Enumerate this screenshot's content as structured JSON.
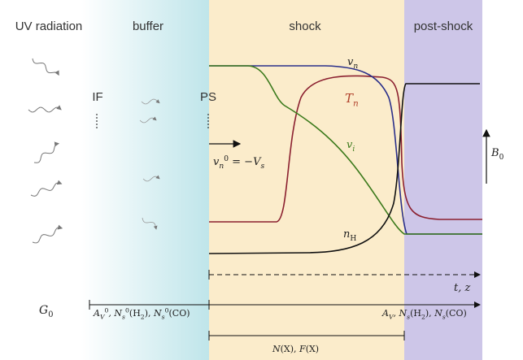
{
  "header": {
    "regions": [
      "UV radiation",
      "buffer",
      "shock",
      "post-shock"
    ]
  },
  "markers": {
    "ionization_front": "IF",
    "pre_shock": "PS"
  },
  "curves": {
    "v_n": [
      {
        "text": "v"
      },
      {
        "text": "n",
        "pos": "sub"
      }
    ],
    "T_n": [
      {
        "text": "T"
      },
      {
        "text": "n",
        "pos": "sub"
      }
    ],
    "v_i": [
      {
        "text": "v"
      },
      {
        "text": "i",
        "pos": "sub"
      }
    ],
    "n_H": [
      {
        "text": "n"
      },
      {
        "text": "H",
        "pos": "sub",
        "roman": true
      }
    ]
  },
  "velocity": [
    {
      "text": "v"
    },
    {
      "text": "n",
      "pos": "sub"
    },
    {
      "text": "0",
      "pos": "sup",
      "roman": true
    },
    {
      "text": " = −",
      "roman": true
    },
    {
      "text": "V"
    },
    {
      "text": "s",
      "pos": "sub"
    }
  ],
  "field": [
    {
      "text": "B"
    },
    {
      "text": "0",
      "pos": "sub",
      "roman": true
    }
  ],
  "time_axis": [
    {
      "text": "t, z"
    }
  ],
  "source": [
    {
      "text": "G"
    },
    {
      "text": "0",
      "pos": "sub",
      "roman": true
    }
  ],
  "initial_columns": [
    {
      "text": "A"
    },
    {
      "text": "V",
      "pos": "sub"
    },
    {
      "text": "0",
      "pos": "sup",
      "roman": true
    },
    {
      "text": ", N",
      "roman": false
    },
    {
      "text": "s",
      "pos": "sub"
    },
    {
      "text": "0",
      "pos": "sup",
      "roman": true
    },
    {
      "text": "(H",
      "roman": true
    },
    {
      "text": "2",
      "pos": "sub",
      "roman": true
    },
    {
      "text": "), ",
      "roman": true
    },
    {
      "text": "N"
    },
    {
      "text": "s",
      "pos": "sub"
    },
    {
      "text": "0",
      "pos": "sup",
      "roman": true
    },
    {
      "text": "(CO)",
      "roman": true
    }
  ],
  "final_columns": [
    {
      "text": "A"
    },
    {
      "text": "V",
      "pos": "sub"
    },
    {
      "text": ", N"
    },
    {
      "text": "s",
      "pos": "sub"
    },
    {
      "text": "(H",
      "roman": true
    },
    {
      "text": "2",
      "pos": "sub",
      "roman": true
    },
    {
      "text": "), ",
      "roman": true
    },
    {
      "text": "N"
    },
    {
      "text": "s",
      "pos": "sub"
    },
    {
      "text": "(CO)",
      "roman": true
    }
  ],
  "shock_columns": [
    {
      "text": "N"
    },
    {
      "text": "(X), ",
      "roman": true
    },
    {
      "text": "F"
    },
    {
      "text": "(X)",
      "roman": true
    }
  ]
}
